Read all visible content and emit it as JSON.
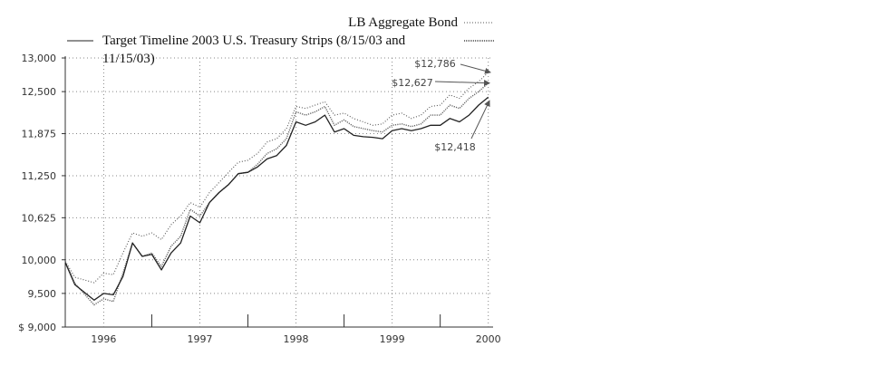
{
  "chart_data": {
    "type": "line",
    "title": "",
    "xlabel": "",
    "ylabel": "",
    "ylim": [
      9000,
      13000
    ],
    "yticks": [
      {
        "value": 13000,
        "label": "13,000"
      },
      {
        "value": 12500,
        "label": "12,500"
      },
      {
        "value": 11875,
        "label": "11,875"
      },
      {
        "value": 11250,
        "label": "11,250"
      },
      {
        "value": 10625,
        "label": "10,625"
      },
      {
        "value": 10000,
        "label": "10,000"
      },
      {
        "value": 9500,
        "label": "9,500"
      },
      {
        "value": 9000,
        "label": "$ 9,000"
      }
    ],
    "xlim": [
      1995.6,
      2000.05
    ],
    "xticks": [
      {
        "value": 1996,
        "label": "1996"
      },
      {
        "value": 1997,
        "label": "1997"
      },
      {
        "value": 1998,
        "label": "1998"
      },
      {
        "value": 1999,
        "label": "1999"
      },
      {
        "value": 2000,
        "label": "2000"
      }
    ],
    "grid": true,
    "legend": "top",
    "series": [
      {
        "name": "LB Aggregate Bond",
        "style": "dotted",
        "color": "#555555",
        "x": [
          1995.6,
          1995.7,
          1995.9,
          1996.0,
          1996.1,
          1996.2,
          1996.3,
          1996.4,
          1996.5,
          1996.6,
          1996.7,
          1996.8,
          1996.9,
          1997.0,
          1997.1,
          1997.2,
          1997.3,
          1997.4,
          1997.5,
          1997.6,
          1997.7,
          1997.8,
          1997.9,
          1998.0,
          1998.1,
          1998.2,
          1998.3,
          1998.4,
          1998.5,
          1998.6,
          1998.7,
          1998.8,
          1998.9,
          1999.0,
          1999.1,
          1999.2,
          1999.3,
          1999.4,
          1999.5,
          1999.6,
          1999.7,
          1999.8,
          1999.9,
          2000.0
        ],
        "y": [
          9980,
          9740,
          9660,
          9800,
          9780,
          10100,
          10400,
          10350,
          10400,
          10300,
          10520,
          10650,
          10850,
          10780,
          11000,
          11150,
          11300,
          11450,
          11480,
          11580,
          11750,
          11800,
          11950,
          12280,
          12250,
          12300,
          12350,
          12150,
          12180,
          12100,
          12050,
          12000,
          12020,
          12150,
          12180,
          12100,
          12150,
          12280,
          12300,
          12450,
          12400,
          12550,
          12650,
          12786
        ]
      },
      {
        "name": "Target Timeline 2003 U.S. Treasury Strips (8/15/03 and 11/15/03)",
        "style": "dense-dotted",
        "color": "#666666",
        "x": [
          1995.6,
          1995.7,
          1995.9,
          1996.0,
          1996.1,
          1996.2,
          1996.3,
          1996.4,
          1996.5,
          1996.6,
          1996.7,
          1996.8,
          1996.9,
          1997.0,
          1997.1,
          1997.2,
          1997.3,
          1997.4,
          1997.5,
          1997.6,
          1997.7,
          1997.8,
          1997.9,
          1998.0,
          1998.1,
          1998.2,
          1998.3,
          1998.4,
          1998.5,
          1998.6,
          1998.7,
          1998.8,
          1998.9,
          1999.0,
          1999.1,
          1999.2,
          1999.3,
          1999.4,
          1999.5,
          1999.6,
          1999.7,
          1999.8,
          1999.9,
          2000.0
        ],
        "y": [
          9970,
          9650,
          9330,
          9420,
          9380,
          9800,
          10250,
          10050,
          10100,
          9900,
          10200,
          10350,
          10750,
          10650,
          10850,
          11000,
          11120,
          11280,
          11300,
          11420,
          11580,
          11650,
          11800,
          12200,
          12150,
          12200,
          12280,
          12000,
          12080,
          11980,
          11950,
          11920,
          11900,
          12000,
          12020,
          11980,
          12020,
          12150,
          12150,
          12300,
          12250,
          12400,
          12500,
          12627
        ]
      },
      {
        "name": "",
        "style": "solid",
        "color": "#222222",
        "x": [
          1995.6,
          1995.7,
          1995.9,
          1996.0,
          1996.1,
          1996.2,
          1996.3,
          1996.4,
          1996.5,
          1996.6,
          1996.7,
          1996.8,
          1996.9,
          1997.0,
          1997.1,
          1997.2,
          1997.3,
          1997.4,
          1997.5,
          1997.6,
          1997.7,
          1997.8,
          1997.9,
          1998.0,
          1998.1,
          1998.2,
          1998.3,
          1998.4,
          1998.5,
          1998.6,
          1998.7,
          1998.8,
          1998.9,
          1999.0,
          1999.1,
          1999.2,
          1999.3,
          1999.4,
          1999.5,
          1999.6,
          1999.7,
          1999.8,
          1999.9,
          2000.0
        ],
        "y": [
          9960,
          9630,
          9400,
          9500,
          9480,
          9750,
          10250,
          10050,
          10080,
          9850,
          10100,
          10250,
          10650,
          10550,
          10850,
          11000,
          11120,
          11280,
          11300,
          11380,
          11500,
          11550,
          11700,
          12050,
          12000,
          12050,
          12150,
          11900,
          11950,
          11850,
          11830,
          11820,
          11800,
          11920,
          11950,
          11920,
          11950,
          12000,
          12000,
          12100,
          12050,
          12150,
          12300,
          12418
        ]
      }
    ],
    "annotations": [
      {
        "text": "$12,786",
        "value": 12786
      },
      {
        "text": "$12,627",
        "value": 12627
      },
      {
        "text": "$12,418",
        "value": 12418
      }
    ]
  },
  "legend_items": [
    {
      "label": "LB Aggregate Bond",
      "style": "dotted"
    },
    {
      "label": "Target Timeline 2003 U.S. Treasury Strips (8/15/03 and",
      "label2": "11/15/03)",
      "style": "dense-dotted"
    }
  ]
}
